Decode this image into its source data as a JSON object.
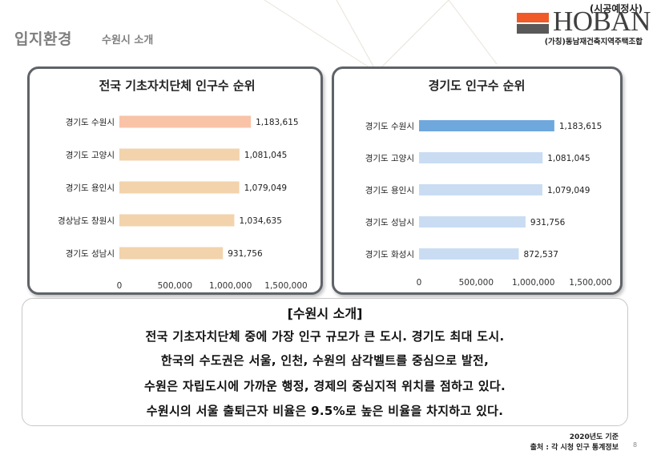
{
  "header": {
    "title": "입지환경",
    "subtitle": "수원시 소개"
  },
  "logo": {
    "tag": "(시공예정사)",
    "brand": "HOBAN",
    "association": "(가칭)동남재건축지역주택조합",
    "mark_colors": [
      "#ef5a28",
      "#595959"
    ]
  },
  "chart_data": [
    {
      "type": "bar",
      "orientation": "horizontal",
      "title": "전국 기초자치단체 인구수 순위",
      "categories": [
        "경기도 수원시",
        "경기도 고양시",
        "경기도 용인시",
        "경상남도 창원시",
        "경기도 성남시"
      ],
      "values": [
        1183615,
        1081045,
        1079049,
        1034635,
        931756
      ],
      "value_labels": [
        "1,183,615",
        "1,081,045",
        "1,079,049",
        "1,034,635",
        "931,756"
      ],
      "colors": [
        "#f9c3a8",
        "#f2d3ac",
        "#f2d3ac",
        "#f2d3ac",
        "#f2d3ac"
      ],
      "xlim": [
        0,
        1500000
      ],
      "x_ticks": [
        0,
        500000,
        1000000,
        1500000
      ],
      "x_tick_labels": [
        "0",
        "500,000",
        "1,000,000",
        "1,500,000"
      ],
      "grid": false
    },
    {
      "type": "bar",
      "orientation": "horizontal",
      "title": "경기도 인구수 순위",
      "categories": [
        "경기도 수원시",
        "경기도 고양시",
        "경기도 용인시",
        "경기도 성남시",
        "경기도 화성시"
      ],
      "values": [
        1183615,
        1081045,
        1079049,
        931756,
        872537
      ],
      "value_labels": [
        "1,183,615",
        "1,081,045",
        "1,079,049",
        "931,756",
        "872,537"
      ],
      "colors": [
        "#6fa8dc",
        "#c9dcf2",
        "#c9dcf2",
        "#c9dcf2",
        "#c9dcf2"
      ],
      "xlim": [
        0,
        1500000
      ],
      "x_ticks": [
        0,
        500000,
        1000000,
        1500000
      ],
      "x_tick_labels": [
        "0",
        "500,000",
        "1,000,000",
        "1,500,000"
      ],
      "grid": false
    }
  ],
  "description": {
    "heading": "[수원시 소개]",
    "lines": [
      "전국 기초자치단체 중에 가장 인구 규모가 큰 도시. 경기도 최대 도시.",
      "한국의 수도권은 서울, 인천, 수원의 삼각벨트를 중심으로 발전,",
      "수원은 자립도시에 가까운 행정, 경제의 중심지적 위치를 점하고 있다.",
      "수원시의 서울 출퇴근자 비율은 9.5%로 높은 비율을 차지하고 있다."
    ]
  },
  "footnote": {
    "basis": "2020년도 기준",
    "source": "출처 : 각 시청 인구 통계정보"
  },
  "page_number": "8"
}
